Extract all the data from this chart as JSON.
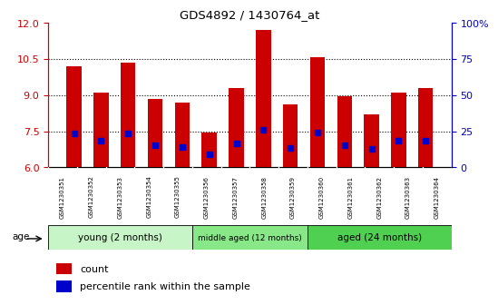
{
  "title": "GDS4892 / 1430764_at",
  "samples": [
    "GSM1230351",
    "GSM1230352",
    "GSM1230353",
    "GSM1230354",
    "GSM1230355",
    "GSM1230356",
    "GSM1230357",
    "GSM1230358",
    "GSM1230359",
    "GSM1230360",
    "GSM1230361",
    "GSM1230362",
    "GSM1230363",
    "GSM1230364"
  ],
  "count_values": [
    10.2,
    9.1,
    10.35,
    8.85,
    8.7,
    7.45,
    9.3,
    11.7,
    8.6,
    10.55,
    8.95,
    8.2,
    9.1,
    9.3
  ],
  "percentile_values": [
    7.4,
    7.1,
    7.4,
    6.9,
    6.85,
    6.55,
    7.0,
    7.55,
    6.8,
    7.45,
    6.9,
    6.75,
    7.1,
    7.1
  ],
  "y_min": 6,
  "y_max": 12,
  "y_ticks_left": [
    6,
    7.5,
    9,
    10.5,
    12
  ],
  "y_ticks_right": [
    0,
    25,
    50,
    75,
    100
  ],
  "groups": [
    {
      "label": "young (2 months)",
      "start": 0,
      "end": 5
    },
    {
      "label": "middle aged (12 months)",
      "start": 5,
      "end": 9
    },
    {
      "label": "aged (24 months)",
      "start": 9,
      "end": 14
    }
  ],
  "group_colors": [
    "#C8F5C8",
    "#88E888",
    "#50D050"
  ],
  "bar_color": "#CC0000",
  "marker_color": "#0000CC",
  "bg_color": "#FFFFFF",
  "tick_bg": "#CCCCCC",
  "left_tick_color": "#CC0000",
  "right_tick_color": "#0000CC"
}
